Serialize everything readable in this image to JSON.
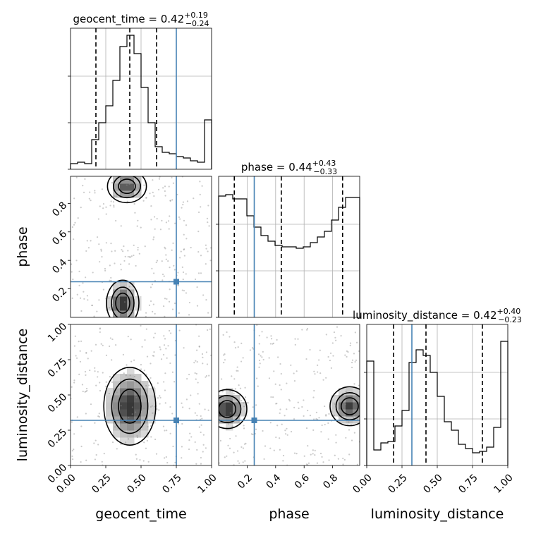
{
  "chart_data": {
    "type": "corner",
    "parameters": [
      "geocent_time",
      "phase",
      "luminosity_distance"
    ],
    "axis_labels": {
      "x": [
        "geocent_time",
        "phase",
        "luminosity_distance"
      ],
      "y": [
        "phase",
        "luminosity_distance"
      ]
    },
    "ranges": {
      "geocent_time": [
        0,
        1
      ],
      "phase": [
        0,
        0.99
      ],
      "luminosity_distance": [
        0,
        1
      ]
    },
    "truths": {
      "geocent_time": 0.75,
      "phase": 0.25,
      "luminosity_distance": 0.32
    },
    "titles": [
      {
        "param": "geocent_time",
        "name": "geocent_time",
        "median": "0.42",
        "plus": "+0.19",
        "minus": "−0.24"
      },
      {
        "param": "phase",
        "name": "phase",
        "median": "0.44",
        "plus": "+0.43",
        "minus": "−0.33"
      },
      {
        "param": "luminosity_distance",
        "name": "luminosity_distance",
        "median": "0.42",
        "plus": "+0.40",
        "minus": "−0.23"
      }
    ],
    "quantiles": {
      "geocent_time": [
        0.18,
        0.42,
        0.61
      ],
      "phase": [
        0.11,
        0.44,
        0.87
      ],
      "luminosity_distance": [
        0.19,
        0.42,
        0.82
      ]
    },
    "histograms": {
      "geocent_time": [
        0.04,
        0.05,
        0.04,
        0.21,
        0.33,
        0.45,
        0.63,
        0.87,
        0.95,
        0.82,
        0.58,
        0.33,
        0.16,
        0.12,
        0.11,
        0.09,
        0.08,
        0.06,
        0.05,
        0.35
      ],
      "phase": [
        0.86,
        0.87,
        0.84,
        0.84,
        0.72,
        0.64,
        0.58,
        0.54,
        0.51,
        0.5,
        0.5,
        0.49,
        0.5,
        0.53,
        0.57,
        0.61,
        0.69,
        0.78,
        0.85,
        0.85
      ],
      "luminosity_distance": [
        0.74,
        0.11,
        0.16,
        0.17,
        0.28,
        0.39,
        0.73,
        0.82,
        0.78,
        0.66,
        0.49,
        0.31,
        0.25,
        0.15,
        0.12,
        0.09,
        0.1,
        0.13,
        0.27,
        0.88
      ]
    },
    "ticks": {
      "x": [
        [
          "0.00",
          "0.25",
          "0.50",
          "0.75",
          "1.00"
        ],
        [
          "0.2",
          "0.4",
          "0.6",
          "0.8"
        ],
        [
          "0.00",
          "0.25",
          "0.50",
          "0.75",
          "1.00"
        ]
      ],
      "y": [
        [
          "0.2",
          "0.4",
          "0.6",
          "0.8"
        ],
        [
          "0.00",
          "0.25",
          "0.50",
          "0.75",
          "1.00"
        ]
      ]
    },
    "grid": true,
    "colors": {
      "truth": "#4682b4",
      "lines": "#000000",
      "grid": "#b0b0b0",
      "scatter": "#8c8c8c"
    }
  }
}
